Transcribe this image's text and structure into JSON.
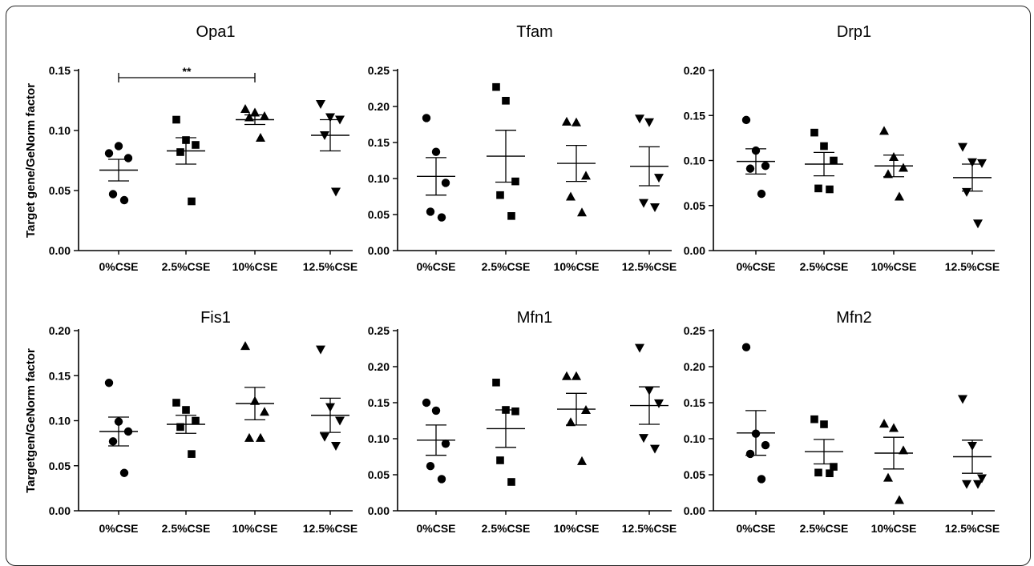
{
  "chart_data": {
    "type": "scatter",
    "categories": [
      "0%CSE",
      "2.5%CSE",
      "10%CSE",
      "12.5%CSE"
    ],
    "markers": [
      "circle",
      "square",
      "triangle-up",
      "triangle-down"
    ],
    "panels": [
      {
        "title": "Opa1",
        "ylabel": "Target gene/GeNorm factor",
        "ylim": [
          0,
          0.15
        ],
        "yticks": [
          "0.00",
          "0.05",
          "0.10",
          "0.15"
        ],
        "series": [
          {
            "points": [
              0.081,
              0.087,
              0.077,
              0.047,
              0.042
            ],
            "mean": 0.067,
            "sem": 0.009
          },
          {
            "points": [
              0.109,
              0.092,
              0.088,
              0.082,
              0.041
            ],
            "mean": 0.083,
            "sem": 0.011
          },
          {
            "points": [
              0.118,
              0.115,
              0.112,
              0.111,
              0.094
            ],
            "mean": 0.109,
            "sem": 0.004
          },
          {
            "points": [
              0.122,
              0.111,
              0.109,
              0.096,
              0.049
            ],
            "mean": 0.096,
            "sem": 0.013
          }
        ],
        "annotation": {
          "from": 0,
          "to": 2,
          "label": "**"
        }
      },
      {
        "title": "Tfam",
        "ylabel": "",
        "ylim": [
          0,
          0.25
        ],
        "yticks": [
          "0.00",
          "0.05",
          "0.10",
          "0.15",
          "0.20",
          "0.25"
        ],
        "series": [
          {
            "points": [
              0.184,
              0.137,
              0.094,
              0.054,
              0.046
            ],
            "mean": 0.103,
            "sem": 0.026
          },
          {
            "points": [
              0.227,
              0.208,
              0.096,
              0.077,
              0.048
            ],
            "mean": 0.131,
            "sem": 0.036
          },
          {
            "points": [
              0.179,
              0.178,
              0.104,
              0.075,
              0.053
            ],
            "mean": 0.121,
            "sem": 0.025
          },
          {
            "points": [
              0.183,
              0.178,
              0.101,
              0.066,
              0.06
            ],
            "mean": 0.117,
            "sem": 0.027
          }
        ]
      },
      {
        "title": "Drp1",
        "ylabel": "",
        "ylim": [
          0,
          0.2
        ],
        "yticks": [
          "0.00",
          "0.05",
          "0.10",
          "0.15",
          "0.20"
        ],
        "series": [
          {
            "points": [
              0.145,
              0.111,
              0.094,
              0.091,
              0.063
            ],
            "mean": 0.099,
            "sem": 0.014
          },
          {
            "points": [
              0.131,
              0.116,
              0.1,
              0.069,
              0.068
            ],
            "mean": 0.096,
            "sem": 0.013
          },
          {
            "points": [
              0.133,
              0.104,
              0.092,
              0.085,
              0.06
            ],
            "mean": 0.094,
            "sem": 0.012
          },
          {
            "points": [
              0.115,
              0.098,
              0.097,
              0.065,
              0.03
            ],
            "mean": 0.081,
            "sem": 0.015
          }
        ]
      },
      {
        "title": "Fis1",
        "ylabel": "Targetgen/GeNorm factor",
        "ylim": [
          0,
          0.2
        ],
        "yticks": [
          "0.00",
          "0.05",
          "0.10",
          "0.15",
          "0.20"
        ],
        "series": [
          {
            "points": [
              0.142,
              0.099,
              0.088,
              0.077,
              0.042
            ],
            "mean": 0.088,
            "sem": 0.016
          },
          {
            "points": [
              0.12,
              0.112,
              0.1,
              0.093,
              0.063
            ],
            "mean": 0.096,
            "sem": 0.01
          },
          {
            "points": [
              0.183,
              0.122,
              0.11,
              0.081,
              0.081
            ],
            "mean": 0.119,
            "sem": 0.018
          },
          {
            "points": [
              0.179,
              0.115,
              0.1,
              0.082,
              0.072
            ],
            "mean": 0.106,
            "sem": 0.019
          }
        ]
      },
      {
        "title": "Mfn1",
        "ylabel": "",
        "ylim": [
          0,
          0.25
        ],
        "yticks": [
          "0.00",
          "0.05",
          "0.10",
          "0.15",
          "0.20",
          "0.25"
        ],
        "series": [
          {
            "points": [
              0.15,
              0.139,
              0.093,
              0.062,
              0.044
            ],
            "mean": 0.098,
            "sem": 0.021
          },
          {
            "points": [
              0.178,
              0.14,
              0.138,
              0.07,
              0.04
            ],
            "mean": 0.114,
            "sem": 0.026
          },
          {
            "points": [
              0.187,
              0.187,
              0.14,
              0.123,
              0.069
            ],
            "mean": 0.141,
            "sem": 0.022
          },
          {
            "points": [
              0.226,
              0.167,
              0.149,
              0.101,
              0.086
            ],
            "mean": 0.146,
            "sem": 0.026
          }
        ]
      },
      {
        "title": "Mfn2",
        "ylabel": "",
        "ylim": [
          0,
          0.25
        ],
        "yticks": [
          "0.00",
          "0.05",
          "0.10",
          "0.15",
          "0.20",
          "0.25"
        ],
        "series": [
          {
            "points": [
              0.227,
              0.107,
              0.091,
              0.079,
              0.044
            ],
            "mean": 0.108,
            "sem": 0.031
          },
          {
            "points": [
              0.127,
              0.12,
              0.061,
              0.053,
              0.052
            ],
            "mean": 0.082,
            "sem": 0.017
          },
          {
            "points": [
              0.121,
              0.115,
              0.084,
              0.046,
              0.015
            ],
            "mean": 0.08,
            "sem": 0.022
          },
          {
            "points": [
              0.155,
              0.09,
              0.045,
              0.037,
              0.037
            ],
            "mean": 0.075,
            "sem": 0.023
          }
        ]
      }
    ]
  }
}
